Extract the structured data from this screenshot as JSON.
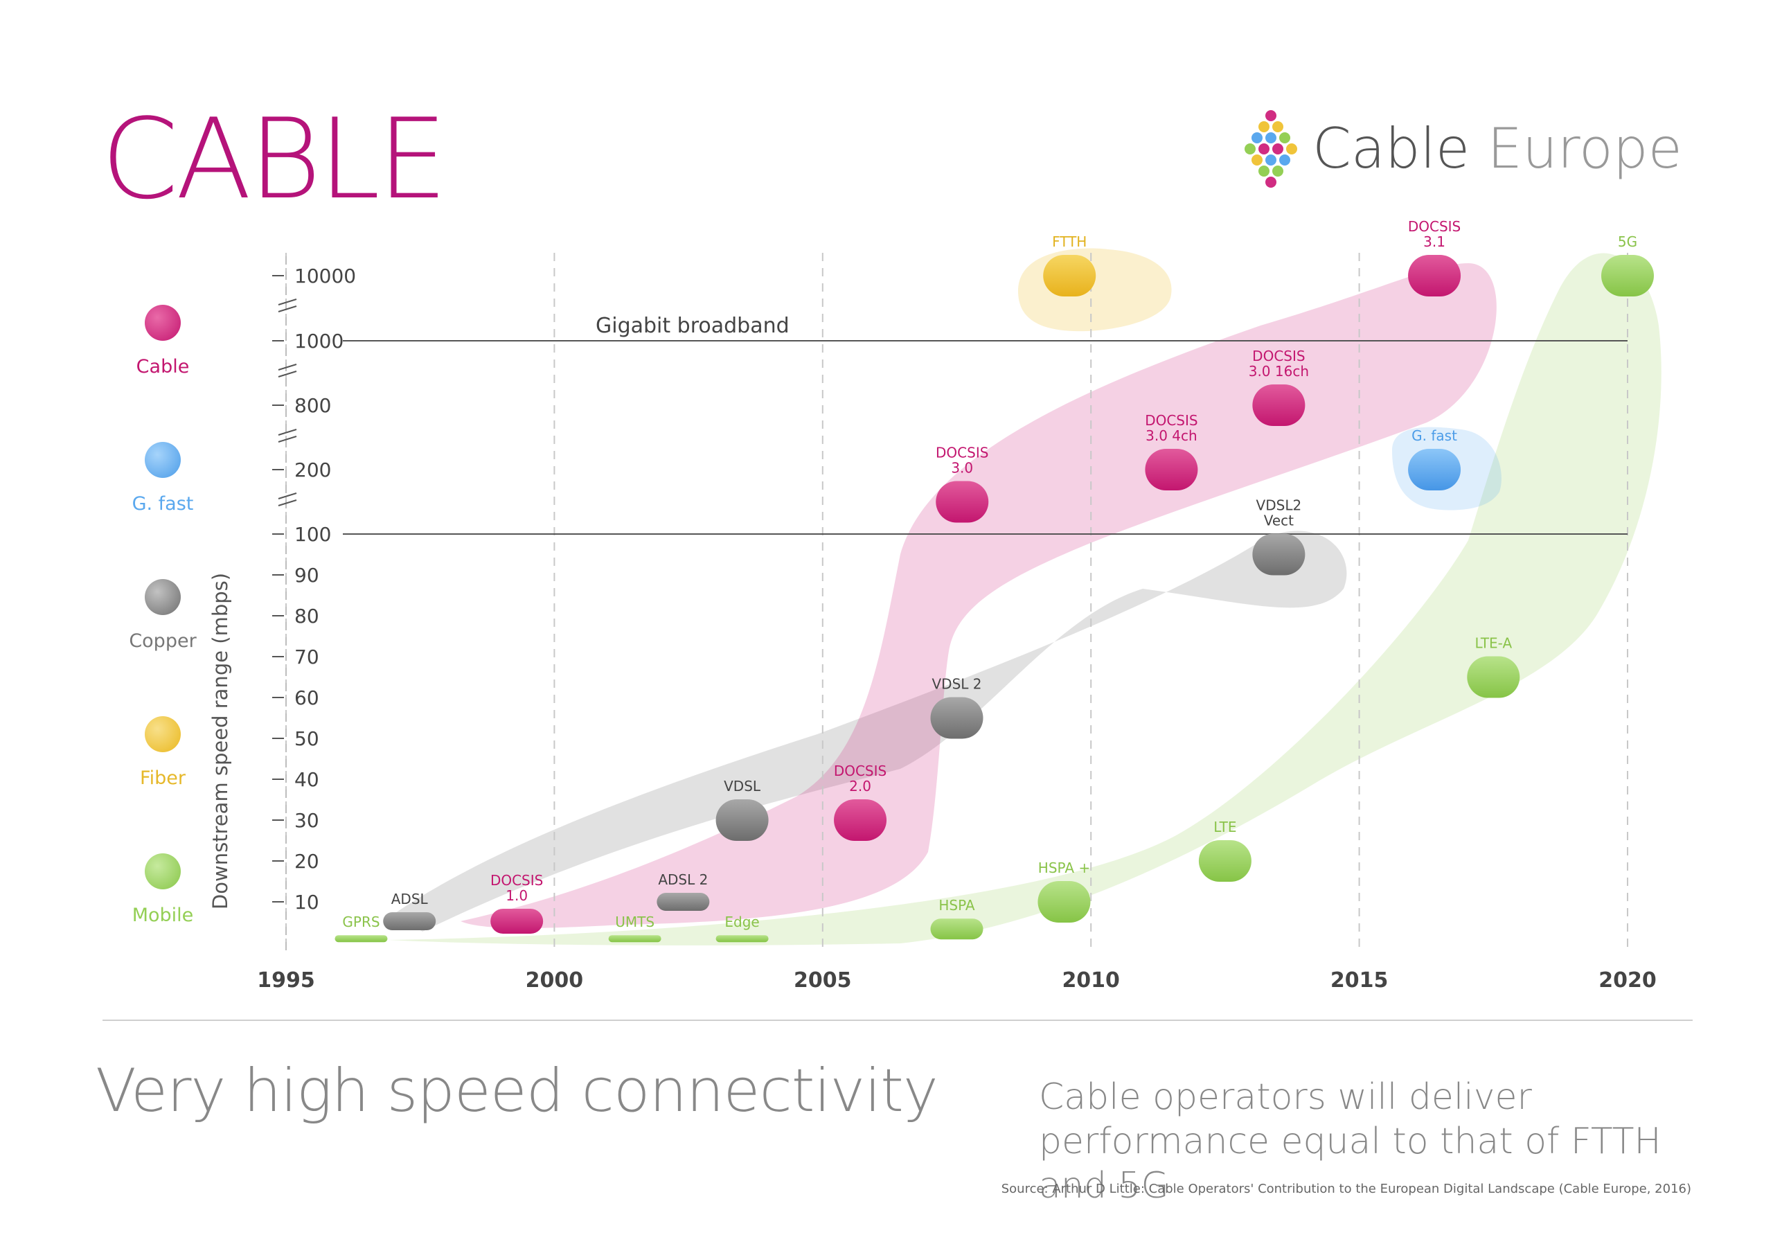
{
  "header": {
    "title": "CABLE",
    "logo_word1": "Cable",
    "logo_word2": "Europe"
  },
  "legend": [
    {
      "label": "Cable",
      "color": "#d02c82",
      "icon": "cable-dot"
    },
    {
      "label": "G. fast",
      "color": "#5aa8ee",
      "icon": "gfast-dot"
    },
    {
      "label": "Copper",
      "color": "#888888",
      "icon": "copper-dot"
    },
    {
      "label": "Fiber",
      "color": "#f0c43a",
      "icon": "fiber-dot"
    },
    {
      "label": "Mobile",
      "color": "#94cf55",
      "icon": "mobile-dot"
    }
  ],
  "footer": {
    "subtitle": "Very high speed connectivity",
    "tagline": "Cable operators will deliver performance equal to that of FTTH and 5G",
    "source": "Source: Arthur D Little: Cable Operators' Contribution to the European Digital Landscape (Cable Europe, 2016)"
  },
  "chart_data": {
    "type": "scatter",
    "title": "",
    "xlabel": "",
    "ylabel": "Downstream speed range (mbps)",
    "x_ticks": [
      "1995",
      "2000",
      "2005",
      "2010",
      "2015",
      "2020"
    ],
    "xlim": [
      1995,
      2020
    ],
    "y_ticks": [
      "10000",
      "1000",
      "800",
      "200",
      "100",
      "90",
      "80",
      "70",
      "60",
      "50",
      "40",
      "30",
      "20",
      "10"
    ],
    "y_scale": "broken",
    "grid": "vertical dashed",
    "reference_lines": [
      {
        "value": 1000,
        "label": "Gigabit broadband"
      },
      {
        "value": 100,
        "label": ""
      }
    ],
    "series": [
      {
        "name": "Cable",
        "color": "#d02c82",
        "points": [
          {
            "label": "DOCSIS 1.0",
            "x": 1999.3,
            "y": 5
          },
          {
            "label": "DOCSIS 2.0",
            "x": 2005.7,
            "y": 30
          },
          {
            "label": "DOCSIS 3.0",
            "x": 2007.6,
            "y": 150
          },
          {
            "label": "DOCSIS 3.0 4ch",
            "x": 2011.5,
            "y": 200
          },
          {
            "label": "DOCSIS 3.0 16ch",
            "x": 2013.5,
            "y": 800
          },
          {
            "label": "DOCSIS 3.1",
            "x": 2016.4,
            "y": 10000
          }
        ]
      },
      {
        "name": "Copper",
        "color": "#888888",
        "points": [
          {
            "label": "ADSL",
            "x": 1997.3,
            "y": 5
          },
          {
            "label": "ADSL 2",
            "x": 2002.4,
            "y": 10
          },
          {
            "label": "VDSL",
            "x": 2003.5,
            "y": 30
          },
          {
            "label": "VDSL 2",
            "x": 2007.5,
            "y": 55
          },
          {
            "label": "VDSL2 Vect",
            "x": 2013.5,
            "y": 95
          }
        ]
      },
      {
        "name": "G. fast",
        "color": "#5aa8ee",
        "points": [
          {
            "label": "G. fast",
            "x": 2016.4,
            "y": 200
          }
        ]
      },
      {
        "name": "Fiber",
        "color": "#f0c43a",
        "points": [
          {
            "label": "FTTH",
            "x": 2009.6,
            "y": 10000
          }
        ]
      },
      {
        "name": "Mobile",
        "color": "#94cf55",
        "points": [
          {
            "label": "GPRS",
            "x": 1996.4,
            "y": 0.5
          },
          {
            "label": "UMTS",
            "x": 2001.5,
            "y": 0.5
          },
          {
            "label": "Edge",
            "x": 2003.5,
            "y": 0.5
          },
          {
            "label": "HSPA",
            "x": 2007.5,
            "y": 3
          },
          {
            "label": "HSPA +",
            "x": 2009.5,
            "y": 10
          },
          {
            "label": "LTE",
            "x": 2012.5,
            "y": 20
          },
          {
            "label": "LTE-A",
            "x": 2017.5,
            "y": 65
          },
          {
            "label": "5G",
            "x": 2020,
            "y": 10000
          }
        ]
      }
    ]
  }
}
